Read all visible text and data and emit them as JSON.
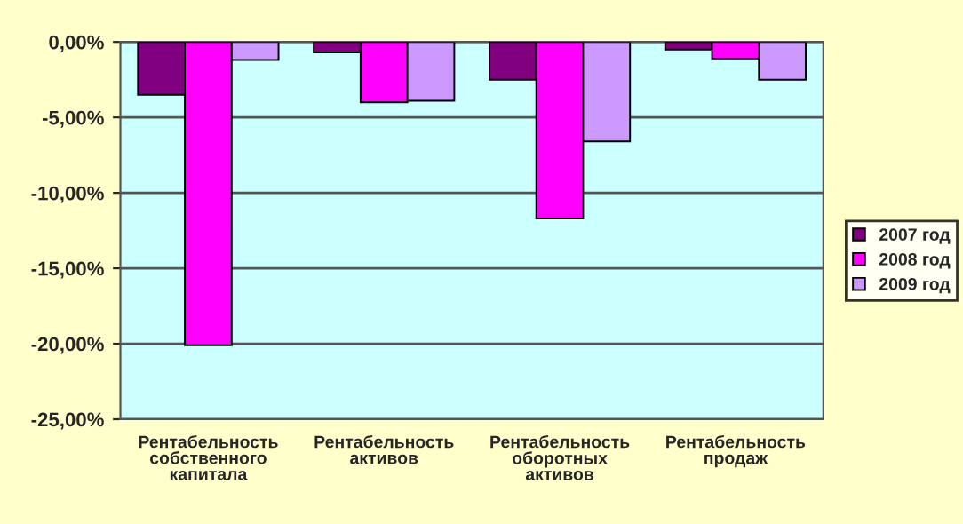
{
  "chart_data": {
    "type": "bar",
    "categories": [
      "Рентабельность собственного капитала",
      "Рентабельность активов",
      "Рентабельность оборотных активов",
      "Рентабельность продаж"
    ],
    "series": [
      {
        "name": "2007 год",
        "color": "#800080",
        "values": [
          -3.5,
          -0.7,
          -2.5,
          -0.5
        ]
      },
      {
        "name": "2008 год",
        "color": "#ff00ff",
        "values": [
          -20.1,
          -4.0,
          -11.7,
          -1.1
        ]
      },
      {
        "name": "2009 год",
        "color": "#cc99ff",
        "values": [
          -1.2,
          -3.9,
          -6.6,
          -2.5
        ]
      }
    ],
    "ylim": [
      -25,
      0
    ],
    "yticks": [
      {
        "value": -25,
        "label": "-25,00%"
      },
      {
        "value": -20,
        "label": "-20,00%"
      },
      {
        "value": -15,
        "label": "-15,00%"
      },
      {
        "value": -10,
        "label": "-10,00%"
      },
      {
        "value": -5,
        "label": "-5,00%"
      },
      {
        "value": 0,
        "label": "0,00%"
      }
    ],
    "grid": "y",
    "legend": "right"
  }
}
